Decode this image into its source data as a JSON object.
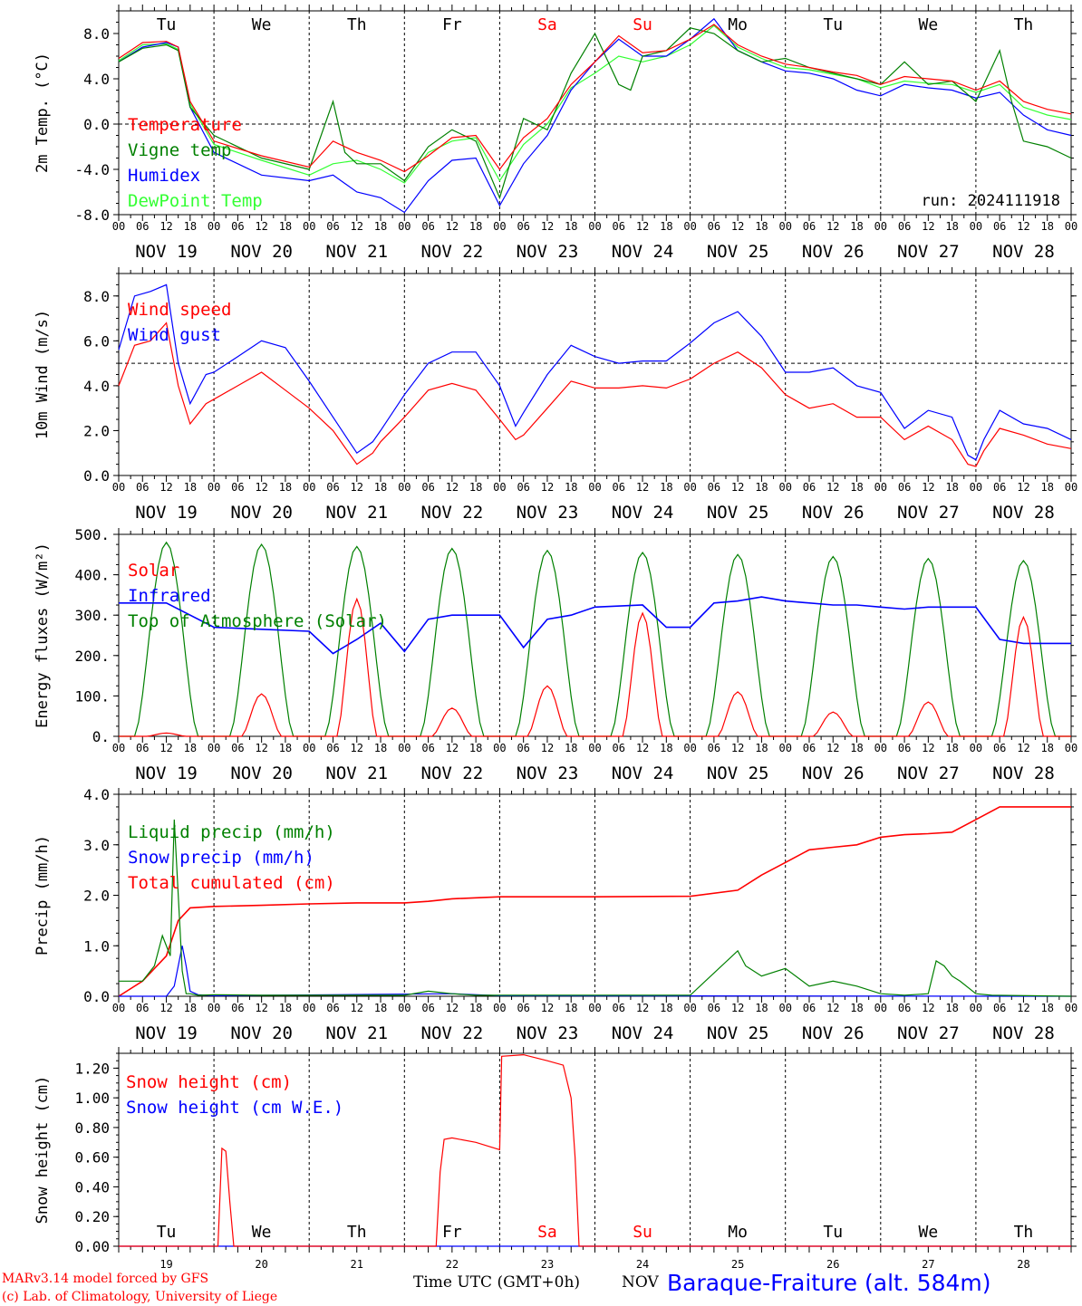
{
  "days": {
    "weekdays": [
      "Tu",
      "We",
      "Th",
      "Fr",
      "Sa",
      "Su",
      "Mo",
      "Tu",
      "We",
      "Th"
    ],
    "weekend_color": "#ff0000",
    "weekend_index": [
      4,
      5
    ],
    "dates": [
      "NOV 19",
      "NOV 20",
      "NOV 21",
      "NOV 22",
      "NOV 23",
      "NOV 24",
      "NOV 25",
      "NOV 26",
      "NOV 27",
      "NOV 28"
    ],
    "numbers": [
      "19",
      "20",
      "21",
      "22",
      "23",
      "24",
      "25",
      "26",
      "27",
      "28"
    ],
    "hour_ticks": [
      "00",
      "06",
      "12",
      "18"
    ],
    "final_tick": "00"
  },
  "footer": {
    "credit_line1": "MARv3.14 model forced by GFS",
    "credit_line2": "(c) Lab. of Climatology, University of Liege",
    "xlabel": "Time UTC (GMT+0h)",
    "month": "NOV",
    "station": "Baraque-Fraiture (alt. 584m)"
  },
  "chart_data": [
    {
      "type": "line",
      "ylabel": "2m Temp. (°C)",
      "ylim": [
        -8,
        10
      ],
      "yticks": [
        "8.0",
        "4.0",
        "0.0",
        "-4.0",
        "-8.0"
      ],
      "ytick_values": [
        8,
        4,
        0,
        -4,
        -8
      ],
      "refline": 0,
      "run_label": "run: 2024111918",
      "x_unit": "hours since NOV 19 00 UTC",
      "series": [
        {
          "name": "Temperature",
          "color": "#ff0000",
          "x": [
            0,
            6,
            12,
            15,
            18,
            24,
            36,
            48,
            54,
            60,
            66,
            72,
            78,
            84,
            90,
            96,
            102,
            108,
            114,
            120,
            126,
            132,
            138,
            144,
            150,
            156,
            162,
            168,
            174,
            180,
            186,
            192,
            198,
            204,
            210,
            216,
            222,
            228,
            234,
            240
          ],
          "y": [
            5.8,
            7.2,
            7.3,
            6.8,
            2.0,
            -1.5,
            -2.8,
            -3.8,
            -1.5,
            -2.5,
            -3.2,
            -4.2,
            -2.8,
            -1.2,
            -1.0,
            -4.0,
            -1.2,
            0.5,
            3.5,
            5.5,
            7.8,
            6.3,
            6.5,
            7.5,
            8.8,
            7.0,
            6.0,
            5.3,
            5.0,
            4.6,
            4.3,
            3.5,
            4.2,
            4.0,
            3.8,
            3.0,
            3.8,
            2.0,
            1.3,
            0.9
          ]
        },
        {
          "name": "Vigne temp",
          "color": "#008000",
          "x": [
            0,
            6,
            12,
            15,
            18,
            24,
            36,
            48,
            54,
            57,
            60,
            66,
            72,
            78,
            84,
            90,
            96,
            102,
            108,
            114,
            120,
            126,
            129,
            132,
            138,
            144,
            150,
            156,
            162,
            168,
            174,
            180,
            186,
            192,
            198,
            204,
            210,
            216,
            222,
            225,
            228,
            234,
            240
          ],
          "y": [
            5.5,
            6.7,
            7.0,
            6.5,
            1.5,
            -1.0,
            -3.0,
            -4.0,
            2.0,
            -2.5,
            -3.5,
            -3.5,
            -5.0,
            -2.0,
            -0.5,
            -1.5,
            -6.5,
            0.5,
            -0.5,
            4.5,
            8.0,
            3.5,
            3.0,
            6.0,
            6.5,
            8.5,
            8.0,
            6.5,
            5.5,
            5.8,
            5.0,
            4.5,
            4.0,
            3.5,
            5.5,
            3.5,
            3.8,
            2.0,
            6.5,
            2.0,
            -1.5,
            -2.0,
            -3.0
          ]
        },
        {
          "name": "Humidex",
          "color": "#0000ff",
          "x": [
            0,
            6,
            12,
            15,
            18,
            24,
            36,
            48,
            54,
            60,
            66,
            72,
            78,
            84,
            90,
            96,
            102,
            108,
            114,
            120,
            126,
            132,
            138,
            144,
            150,
            156,
            162,
            168,
            174,
            180,
            186,
            192,
            198,
            204,
            210,
            216,
            222,
            228,
            234,
            240
          ],
          "y": [
            5.5,
            6.8,
            7.2,
            6.8,
            1.5,
            -2.5,
            -4.5,
            -5.0,
            -4.5,
            -6.0,
            -6.5,
            -7.8,
            -5.0,
            -3.2,
            -3.0,
            -7.2,
            -3.5,
            -1.0,
            3.0,
            5.5,
            7.5,
            6.0,
            6.0,
            7.5,
            9.3,
            6.5,
            5.5,
            4.7,
            4.5,
            4.0,
            3.0,
            2.5,
            3.5,
            3.2,
            3.0,
            2.3,
            2.8,
            0.8,
            -0.5,
            -1.0
          ]
        },
        {
          "name": "DewPoint Temp",
          "color": "#33ff33",
          "x": [
            0,
            6,
            12,
            15,
            18,
            24,
            36,
            48,
            54,
            60,
            66,
            72,
            78,
            84,
            90,
            96,
            102,
            108,
            114,
            120,
            126,
            132,
            138,
            144,
            150,
            156,
            162,
            168,
            174,
            180,
            186,
            192,
            198,
            204,
            210,
            216,
            222,
            228,
            234,
            240
          ],
          "y": [
            5.6,
            7.0,
            7.1,
            6.6,
            1.8,
            -1.8,
            -3.2,
            -4.5,
            -3.5,
            -3.2,
            -4.0,
            -5.2,
            -2.5,
            -1.5,
            -1.2,
            -5.0,
            -1.8,
            0.0,
            3.2,
            4.5,
            6.0,
            5.5,
            6.0,
            7.0,
            8.7,
            6.8,
            5.8,
            5.0,
            4.8,
            4.4,
            4.0,
            3.2,
            3.8,
            3.6,
            3.5,
            2.8,
            3.5,
            1.5,
            0.8,
            0.4
          ]
        }
      ]
    },
    {
      "type": "line",
      "ylabel": "10m Wind (m/s)",
      "ylim": [
        0,
        9
      ],
      "yticks": [
        "8.0",
        "6.0",
        "4.0",
        "2.0",
        "0.0"
      ],
      "ytick_values": [
        8,
        6,
        4,
        2,
        0
      ],
      "refline": 5,
      "x_unit": "hours since NOV 19 00 UTC",
      "series": [
        {
          "name": "Wind speed",
          "color": "#ff0000",
          "x": [
            0,
            4,
            8,
            12,
            15,
            18,
            22,
            24,
            30,
            36,
            42,
            48,
            54,
            60,
            64,
            66,
            72,
            78,
            84,
            90,
            96,
            100,
            102,
            108,
            114,
            120,
            126,
            132,
            138,
            144,
            150,
            156,
            162,
            168,
            174,
            180,
            186,
            192,
            198,
            204,
            210,
            214,
            216,
            218,
            222,
            228,
            234,
            240
          ],
          "y": [
            4.0,
            5.8,
            6.0,
            6.8,
            4.0,
            2.3,
            3.2,
            3.4,
            4.0,
            4.6,
            3.8,
            3.0,
            2.0,
            0.5,
            1.0,
            1.5,
            2.6,
            3.8,
            4.1,
            3.8,
            2.5,
            1.6,
            1.8,
            3.0,
            4.2,
            3.9,
            3.9,
            4.0,
            3.9,
            4.3,
            5.0,
            5.5,
            4.8,
            3.6,
            3.0,
            3.2,
            2.6,
            2.6,
            1.6,
            2.2,
            1.6,
            0.5,
            0.4,
            1.1,
            2.1,
            1.8,
            1.4,
            1.2
          ]
        },
        {
          "name": "Wind gust",
          "color": "#0000ff",
          "x": [
            0,
            4,
            8,
            12,
            15,
            18,
            22,
            24,
            30,
            36,
            42,
            48,
            54,
            60,
            64,
            66,
            72,
            78,
            84,
            90,
            96,
            100,
            102,
            108,
            114,
            120,
            126,
            132,
            138,
            144,
            150,
            156,
            162,
            168,
            174,
            180,
            186,
            192,
            198,
            204,
            210,
            214,
            216,
            218,
            222,
            228,
            234,
            240
          ],
          "y": [
            5.6,
            8.0,
            8.2,
            8.5,
            5.0,
            3.2,
            4.5,
            4.6,
            5.3,
            6.0,
            5.7,
            4.2,
            2.6,
            1.0,
            1.5,
            2.0,
            3.6,
            5.0,
            5.5,
            5.5,
            4.0,
            2.2,
            2.8,
            4.5,
            5.8,
            5.3,
            5.0,
            5.1,
            5.1,
            5.9,
            6.8,
            7.3,
            6.2,
            4.6,
            4.6,
            4.8,
            4.0,
            3.7,
            2.1,
            2.9,
            2.6,
            0.9,
            0.7,
            1.6,
            2.9,
            2.3,
            2.1,
            1.6
          ]
        }
      ]
    },
    {
      "type": "line",
      "ylabel": "Energy fluxes (W/m²)",
      "ylim": [
        0,
        500
      ],
      "yticks": [
        "500.",
        "400.",
        "300.",
        "200.",
        "100.",
        "0."
      ],
      "ytick_values": [
        500,
        400,
        300,
        200,
        100,
        0
      ],
      "x_unit": "hours since NOV 19 00 UTC",
      "toa_peaks": [
        480,
        475,
        470,
        465,
        460,
        455,
        450,
        445,
        440,
        435
      ],
      "solar_peaks": [
        8,
        105,
        340,
        70,
        125,
        305,
        110,
        60,
        85,
        295
      ],
      "series": [
        {
          "name": "Solar",
          "color": "#ff0000"
        },
        {
          "name": "Infrared",
          "color": "#0000ff",
          "x": [
            0,
            12,
            24,
            36,
            48,
            54,
            60,
            66,
            72,
            78,
            84,
            96,
            102,
            108,
            114,
            120,
            132,
            138,
            144,
            150,
            156,
            162,
            168,
            180,
            186,
            192,
            198,
            204,
            210,
            216,
            222,
            228,
            234,
            240
          ],
          "y": [
            330,
            330,
            270,
            265,
            260,
            205,
            240,
            280,
            210,
            290,
            300,
            300,
            220,
            290,
            300,
            320,
            325,
            270,
            270,
            330,
            335,
            345,
            335,
            325,
            325,
            320,
            315,
            320,
            320,
            320,
            240,
            230,
            230,
            230
          ]
        },
        {
          "name": "Top of Atmosphere (Solar)",
          "color": "#008000"
        }
      ]
    },
    {
      "type": "line",
      "ylabel": "Precip (mm/h)",
      "ylim": [
        0,
        4
      ],
      "yticks": [
        "4.0",
        "3.0",
        "2.0",
        "1.0",
        "0.0"
      ],
      "ytick_values": [
        4,
        3,
        2,
        1,
        0
      ],
      "x_unit": "hours since NOV 19 00 UTC",
      "series": [
        {
          "name": "Liquid precip (mm/h)",
          "color": "#008000",
          "x": [
            0,
            3,
            6,
            9,
            11,
            13,
            14,
            15,
            16,
            17,
            18,
            20,
            24,
            36,
            48,
            60,
            72,
            78,
            84,
            90,
            96,
            108,
            144,
            156,
            158,
            160,
            162,
            168,
            174,
            180,
            186,
            192,
            198,
            204,
            206,
            208,
            210,
            212,
            216,
            220,
            240
          ],
          "y": [
            0.3,
            0.3,
            0.3,
            0.6,
            1.2,
            0.8,
            3.5,
            2.0,
            0.5,
            0.05,
            0.05,
            0.02,
            0.03,
            0.02,
            0.02,
            0.02,
            0.02,
            0.1,
            0.05,
            0.02,
            0.02,
            0.02,
            0.02,
            0.9,
            0.6,
            0.5,
            0.4,
            0.55,
            0.2,
            0.3,
            0.2,
            0.05,
            0.02,
            0.05,
            0.7,
            0.6,
            0.4,
            0.3,
            0.05,
            0.02,
            0.0
          ]
        },
        {
          "name": "Snow precip (mm/h)",
          "color": "#0000ff",
          "x": [
            0,
            12,
            14,
            16,
            17,
            18,
            20,
            24,
            84,
            96,
            240
          ],
          "y": [
            0,
            0,
            0.2,
            1.0,
            0.6,
            0.1,
            0.03,
            0.01,
            0.05,
            0.01,
            0.0
          ]
        },
        {
          "name": "Total cumulated (cm)",
          "color": "#ff0000",
          "x": [
            0,
            6,
            12,
            15,
            18,
            24,
            36,
            48,
            60,
            72,
            78,
            84,
            96,
            120,
            144,
            156,
            162,
            168,
            174,
            180,
            186,
            192,
            198,
            204,
            210,
            216,
            222,
            228,
            240
          ],
          "y": [
            0,
            0.3,
            0.8,
            1.5,
            1.75,
            1.78,
            1.8,
            1.83,
            1.85,
            1.85,
            1.88,
            1.93,
            1.97,
            1.97,
            1.98,
            2.1,
            2.4,
            2.65,
            2.9,
            2.95,
            3.0,
            3.15,
            3.2,
            3.22,
            3.25,
            3.5,
            3.75,
            3.75,
            3.75
          ]
        }
      ]
    },
    {
      "type": "line",
      "ylabel": "Snow height (cm)",
      "ylim": [
        0,
        1.3
      ],
      "yticks": [
        "1.20",
        "1.00",
        "0.80",
        "0.60",
        "0.40",
        "0.20",
        "0.00"
      ],
      "ytick_values": [
        1.2,
        1.0,
        0.8,
        0.6,
        0.4,
        0.2,
        0.0
      ],
      "x_unit": "hours since NOV 19 00 UTC",
      "series": [
        {
          "name": "Snow height (cm)",
          "color": "#ff0000",
          "x": [
            0,
            25,
            26,
            27,
            28,
            29,
            30,
            80,
            81,
            82,
            84,
            90,
            96,
            96.5,
            102,
            108,
            112,
            114,
            115,
            116,
            240
          ],
          "y": [
            0,
            0,
            0.66,
            0.64,
            0.3,
            0,
            0,
            0,
            0.5,
            0.72,
            0.73,
            0.7,
            0.65,
            1.28,
            1.29,
            1.25,
            1.22,
            1.0,
            0.6,
            0,
            0
          ]
        },
        {
          "name": "Snow height (cm W.E.)",
          "color": "#0000ff",
          "x": [
            0,
            240
          ],
          "y": [
            0,
            0
          ]
        }
      ]
    }
  ]
}
